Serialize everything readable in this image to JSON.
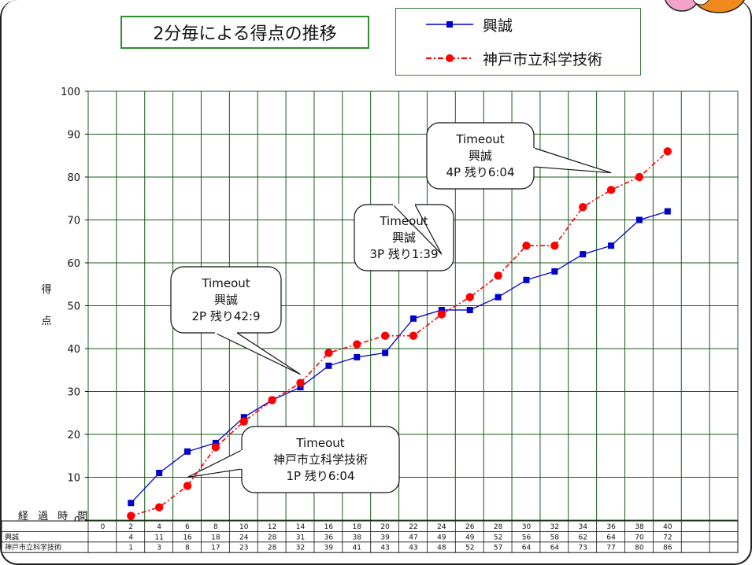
{
  "chart_data": {
    "type": "line",
    "title": "2分毎による得点の推移",
    "ylabel": "得点",
    "xlabel": "経過時間",
    "ylim": [
      0,
      100
    ],
    "yticks": [
      0,
      10,
      20,
      30,
      40,
      50,
      60,
      70,
      80,
      90,
      100
    ],
    "grid": true,
    "legend_position": "top-right",
    "x": [
      0,
      2,
      4,
      6,
      8,
      10,
      12,
      14,
      16,
      18,
      20,
      22,
      24,
      26,
      28,
      30,
      32,
      34,
      36,
      38,
      40
    ],
    "series": [
      {
        "name": "興誠",
        "color": "#0000cc",
        "marker": "square",
        "line": "solid",
        "x": [
          2,
          4,
          6,
          8,
          10,
          12,
          14,
          16,
          18,
          20,
          22,
          24,
          26,
          28,
          30,
          32,
          34,
          36,
          38,
          40
        ],
        "values": [
          4,
          11,
          16,
          18,
          24,
          28,
          31,
          36,
          38,
          39,
          47,
          49,
          49,
          52,
          56,
          58,
          62,
          64,
          70,
          72
        ]
      },
      {
        "name": "神戸市立科学技術",
        "color": "#ff0000",
        "marker": "circle",
        "line": "dashdot",
        "x": [
          2,
          4,
          6,
          8,
          10,
          12,
          14,
          16,
          18,
          20,
          22,
          24,
          26,
          28,
          30,
          32,
          34,
          36,
          38,
          40
        ],
        "values": [
          1,
          3,
          8,
          17,
          23,
          28,
          32,
          39,
          41,
          43,
          43,
          48,
          52,
          57,
          64,
          64,
          73,
          77,
          80,
          86
        ]
      }
    ],
    "annotations": [
      {
        "lines": [
          "Timeout",
          "神戸市立科学技術",
          "1P  残り6:04"
        ],
        "points_to": [
          6,
          10
        ]
      },
      {
        "lines": [
          "Timeout",
          "興誠",
          "2P  残り42:9"
        ],
        "points_to": [
          14,
          34
        ]
      },
      {
        "lines": [
          "Timeout",
          "興誠",
          "3P  残り1:39"
        ],
        "points_to": [
          24,
          62
        ]
      },
      {
        "lines": [
          "Timeout",
          "興誠",
          "4P  残り6:04"
        ],
        "points_to": [
          36,
          81
        ]
      }
    ]
  }
}
